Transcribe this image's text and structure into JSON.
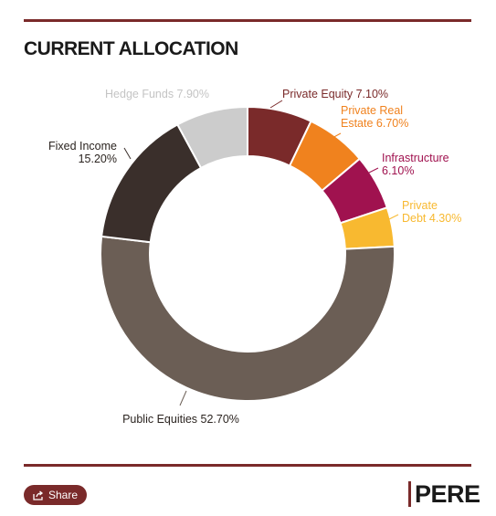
{
  "header": {
    "title": "CURRENT ALLOCATION"
  },
  "chart_data": {
    "type": "pie",
    "variant": "donut",
    "title": "CURRENT ALLOCATION",
    "slices": [
      {
        "name": "Private Equity",
        "value": 7.1,
        "label": "Private Equity 7.10%",
        "color": "#7a2a2a"
      },
      {
        "name": "Private Real Estate",
        "value": 6.7,
        "label": "Private Real Estate 6.70%",
        "color": "#f0821e"
      },
      {
        "name": "Infrastructure",
        "value": 6.1,
        "label": "Infrastructure 6.10%",
        "color": "#a0124f"
      },
      {
        "name": "Private Debt",
        "value": 4.3,
        "label": "Private Debt 4.30%",
        "color": "#f8b930"
      },
      {
        "name": "Public Equities",
        "value": 52.7,
        "label": "Public Equities 52.70%",
        "color": "#6b5e55"
      },
      {
        "name": "Fixed Income",
        "value": 15.2,
        "label": "Fixed Income 15.20%",
        "color": "#3a2f2b"
      },
      {
        "name": "Hedge Funds",
        "value": 7.9,
        "label": "Hedge Funds 7.90%",
        "color": "#cccccc"
      }
    ],
    "legend": "none",
    "labels": "outside with leader lines"
  },
  "footer": {
    "share_label": "Share",
    "logo_text": "PERE",
    "share_icon": "share-icon"
  },
  "colors": {
    "accent": "#7a2a2a"
  }
}
